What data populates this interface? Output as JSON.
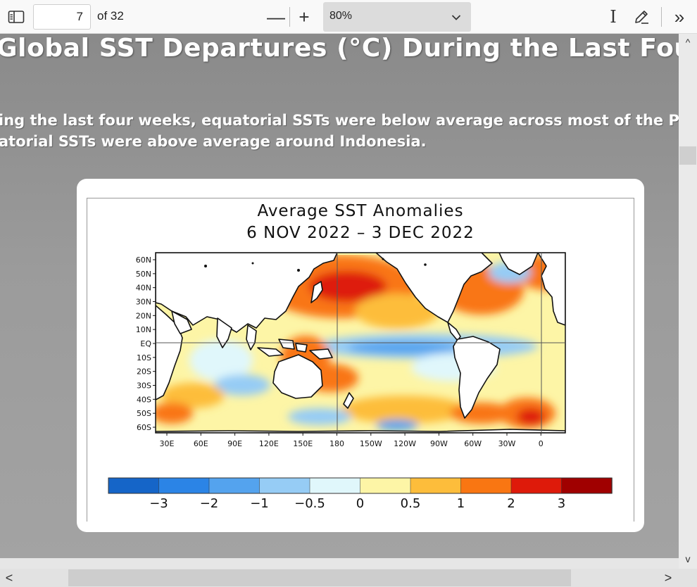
{
  "toolbar": {
    "sidebar_icon": "sidebar-toggle-icon",
    "page_current": "7",
    "page_total": "of 32",
    "zoom_out_label": "—",
    "zoom_in_label": "+",
    "zoom_value": "80%",
    "text_select_label": "I",
    "draw_icon": "pen-icon",
    "more_label": "»"
  },
  "slide": {
    "title": "Global SST Departures (°C) During the Last Four Weeks",
    "line1": "ing the last four weeks, equatorial SSTs were below average across most of the Pacific",
    "line2": "atorial SSTs were above average around Indonesia."
  },
  "figure": {
    "title_line1": "Average SST Anomalies",
    "title_line2": "6 NOV 2022 – 3 DEC 2022",
    "lat_labels": [
      "60N",
      "50N",
      "40N",
      "30N",
      "20N",
      "10N",
      "EQ",
      "10S",
      "20S",
      "30S",
      "40S",
      "50S",
      "60S"
    ],
    "lon_labels": [
      "30E",
      "60E",
      "90E",
      "120E",
      "150E",
      "180",
      "150W",
      "120W",
      "90W",
      "60W",
      "30W",
      "0"
    ],
    "colorbar": {
      "colors": [
        "#1565c8",
        "#2b84e6",
        "#54a3ee",
        "#96ccf5",
        "#e0f7fb",
        "#fdf5a6",
        "#fdbd3b",
        "#f97612",
        "#de1a0a",
        "#a00000"
      ],
      "tick_labels": [
        "−3",
        "−2",
        "−1",
        "−0.5",
        "0",
        "0.5",
        "1",
        "2",
        "3"
      ]
    }
  },
  "scroll": {
    "up": "^",
    "down": "v",
    "left": "<",
    "right": ">"
  }
}
